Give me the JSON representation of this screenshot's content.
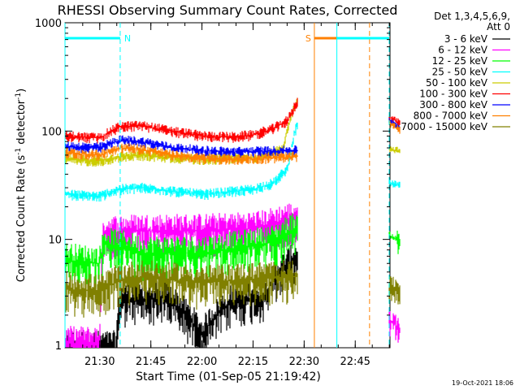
{
  "chart_data": {
    "type": "line",
    "title": "RHESSI Observing Summary Count Rates, Corrected",
    "xlabel": "Start Time (01-Sep-05 21:19:42)",
    "ylabel_main": "Corrected Count Rate (s",
    "ylabel_sup1": "-1",
    "ylabel_mid": " detector",
    "ylabel_sup2": "-1",
    "ylabel_end": ")",
    "yscale": "log",
    "ylim": [
      1,
      1000
    ],
    "xlim_minutes": [
      21.33,
      22.92
    ],
    "y_ticks": [
      {
        "value": 1,
        "label": "1"
      },
      {
        "value": 10,
        "label": "10"
      },
      {
        "value": 100,
        "label": "100"
      },
      {
        "value": 1000,
        "label": "1000"
      }
    ],
    "x_ticks": [
      {
        "value": 21.5,
        "label": "21:30"
      },
      {
        "value": 21.75,
        "label": "21:45"
      },
      {
        "value": 22.0,
        "label": "22:00"
      },
      {
        "value": 22.25,
        "label": "22:15"
      },
      {
        "value": 22.5,
        "label": "22:30"
      },
      {
        "value": 22.75,
        "label": "22:45"
      }
    ],
    "legend_header": [
      "Det 1,3,4,5,6,9,",
      "Att 0"
    ],
    "series": [
      {
        "name": "3 - 6 keV",
        "color": "#000000",
        "x": [
          21.4,
          21.58,
          21.6,
          21.7,
          21.82,
          22.0,
          22.15,
          22.3,
          22.45
        ],
        "y": [
          1.0,
          1.0,
          2.7,
          2.8,
          2.9,
          1.3,
          2.7,
          3.0,
          6.5
        ]
      },
      {
        "name": "6 - 12 keV",
        "color": "#ff00ff",
        "x": [
          21.33,
          21.5,
          21.52,
          21.7,
          22.0,
          22.2,
          22.3,
          22.47
        ],
        "y": [
          1.1,
          1.1,
          11.5,
          12.0,
          12.0,
          12.5,
          13.0,
          16.0
        ]
      },
      {
        "name": "12 - 25 keV",
        "color": "#00ff00",
        "x": [
          21.33,
          21.5,
          21.52,
          21.62,
          21.7,
          22.0,
          22.2,
          22.35,
          22.47
        ],
        "y": [
          6.5,
          6.0,
          9.0,
          8.5,
          7.5,
          7.5,
          8.5,
          9.5,
          13.0
        ]
      },
      {
        "name": "25 - 50 keV",
        "color": "#00ffff",
        "x": [
          21.33,
          21.5,
          21.6,
          21.7,
          21.85,
          22.0,
          22.1,
          22.25,
          22.35,
          22.42,
          22.47
        ],
        "y": [
          26,
          25,
          29,
          30,
          28,
          26,
          27,
          29,
          33,
          45,
          120
        ]
      },
      {
        "name": "50 - 100 keV",
        "color": "#cccc00",
        "x": [
          21.33,
          21.5,
          21.6,
          21.7,
          21.85,
          22.0,
          22.15,
          22.3,
          22.4,
          22.47
        ],
        "y": [
          55,
          53,
          58,
          60,
          57,
          55,
          56,
          58,
          68,
          200
        ]
      },
      {
        "name": "100 - 300 keV",
        "color": "#ff0000",
        "x": [
          21.33,
          21.5,
          21.6,
          21.7,
          21.85,
          22.0,
          22.15,
          22.25,
          22.35,
          22.42,
          22.47
        ],
        "y": [
          90,
          86,
          110,
          112,
          100,
          90,
          88,
          92,
          105,
          125,
          190
        ]
      },
      {
        "name": "300 - 800 keV",
        "color": "#0000ff",
        "x": [
          21.33,
          21.5,
          21.6,
          21.7,
          21.85,
          22.0,
          22.15,
          22.3,
          22.47
        ],
        "y": [
          72,
          70,
          82,
          80,
          70,
          66,
          64,
          65,
          66
        ]
      },
      {
        "name": "800 - 7000 keV",
        "color": "#ff8000",
        "x": [
          21.33,
          21.5,
          21.6,
          21.7,
          21.85,
          22.0,
          22.15,
          22.3,
          22.47
        ],
        "y": [
          63,
          60,
          70,
          68,
          60,
          56,
          55,
          56,
          58
        ]
      },
      {
        "name": "7000 - 15000 keV",
        "color": "#808000",
        "x": [
          21.33,
          21.5,
          21.6,
          21.7,
          22.0,
          22.2,
          22.35,
          22.47
        ],
        "y": [
          3.5,
          3.3,
          4.2,
          4.5,
          4.0,
          4.2,
          4.4,
          4.6
        ]
      }
    ],
    "post_gap_series": {
      "x": [
        22.92,
        22.97
      ],
      "values": {
        "100 - 300 keV": [
          135,
          118
        ],
        "300 - 800 keV": [
          125,
          108
        ],
        "800 - 7000 keV": [
          118,
          102
        ],
        "50 - 100 keV": [
          68,
          66
        ],
        "25 - 50 keV": [
          33,
          32
        ],
        "12 - 25 keV": [
          11,
          9.5
        ],
        "7000 - 15000 keV": [
          3.5,
          3.5
        ],
        "6 - 12 keV": [
          1.8,
          1.5
        ]
      }
    },
    "annotations": [
      {
        "label": "N",
        "kind": "night",
        "color": "#00ffff",
        "x_start": 21.33,
        "x_end": 21.6
      },
      {
        "label": "S",
        "kind": "saa",
        "color": "#ff8000",
        "x_start": 22.55,
        "x_end": 22.82
      },
      {
        "label": "",
        "kind": "night",
        "color": "#00ffff",
        "x_start": 22.66,
        "x_end": 23.02
      }
    ],
    "timestamp": "19-Oct-2021 18:06"
  }
}
